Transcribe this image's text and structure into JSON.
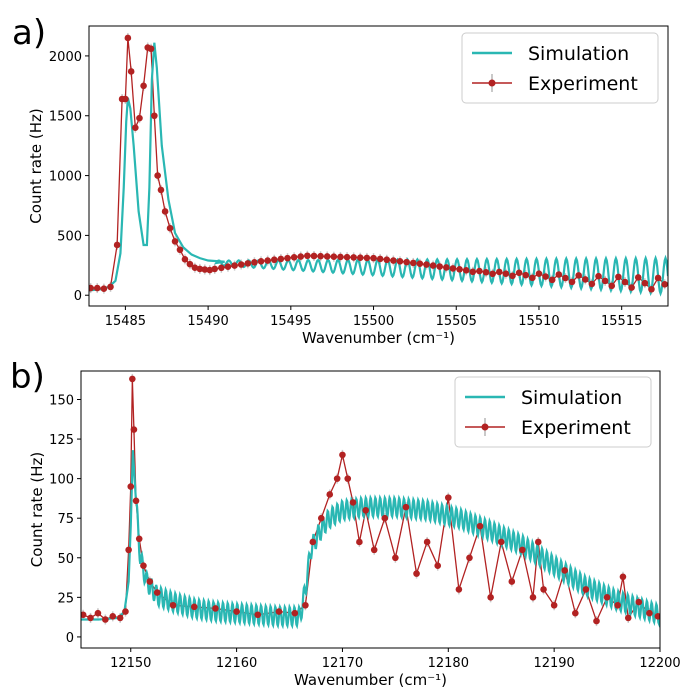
{
  "chart_data": [
    {
      "panel_label": "a)",
      "type": "line",
      "xlabel": "Wavenumber (cm⁻¹)",
      "ylabel": "Count rate (Hz)",
      "xlim": [
        15482.8,
        15517.8
      ],
      "ylim": [
        -90,
        2250
      ],
      "xticks": [
        15485,
        15490,
        15495,
        15500,
        15505,
        15510,
        15515
      ],
      "yticks": [
        0,
        500,
        1000,
        1500,
        2000
      ],
      "legend_position": "top-right",
      "series": [
        {
          "name": "Simulation",
          "color": "#2ab7b3",
          "x": [
            15482.8,
            15483.5,
            15484.0,
            15484.4,
            15484.7,
            15484.9,
            15485.05,
            15485.15,
            15485.3,
            15485.5,
            15485.8,
            15486.1,
            15486.3,
            15486.45,
            15486.6,
            15486.75,
            15486.9,
            15487.2,
            15487.6,
            15488.0,
            15488.5,
            15489.0,
            15489.5,
            15490.0,
            15490.5,
            15491.0
          ],
          "y": [
            40,
            50,
            70,
            120,
            350,
            900,
            1450,
            1650,
            1560,
            1250,
            700,
            420,
            420,
            900,
            1800,
            2110,
            1900,
            1250,
            800,
            520,
            400,
            340,
            310,
            290,
            285,
            280
          ],
          "oscillation": {
            "start": 15490.5,
            "end": 15517.8,
            "period": 0.6,
            "base": 270,
            "base_slope": -4,
            "amp_start": 20,
            "amp_end": 150
          }
        },
        {
          "name": "Experiment",
          "color": "#b22222",
          "x": [
            15482.9,
            15483.3,
            15483.7,
            15484.1,
            15484.5,
            15484.8,
            15485.0,
            15485.15,
            15485.35,
            15485.6,
            15485.85,
            15486.1,
            15486.35,
            15486.55,
            15486.75,
            15486.95,
            15487.15,
            15487.4,
            15487.7,
            15488.0,
            15488.3,
            15488.6,
            15488.9,
            15489.2,
            15489.5,
            15489.8,
            15490.1
          ],
          "y": [
            60,
            60,
            55,
            70,
            420,
            1640,
            1640,
            2150,
            1870,
            1400,
            1480,
            1750,
            2070,
            2060,
            1500,
            1000,
            880,
            700,
            560,
            450,
            380,
            300,
            260,
            230,
            220,
            215,
            210
          ],
          "continuation": {
            "start": 15490.4,
            "end": 15517.8,
            "step": 0.4,
            "levels": [
              [
                15490.4,
                220
              ],
              [
                15493,
                280
              ],
              [
                15496,
                330
              ],
              [
                15500,
                310
              ],
              [
                15503,
                260
              ],
              [
                15506,
                200
              ],
              [
                15510,
                160
              ],
              [
                15514,
                120
              ],
              [
                15517.8,
                90
              ]
            ],
            "osc_from": 15505,
            "osc_amp_end": 60,
            "period": 0.6
          }
        }
      ]
    },
    {
      "panel_label": "b)",
      "type": "line",
      "xlabel": "Wavenumber (cm⁻¹)",
      "ylabel": "Count rate (Hz)",
      "xlim": [
        12145.3,
        12200
      ],
      "ylim": [
        -7,
        168
      ],
      "xticks": [
        12150,
        12160,
        12170,
        12180,
        12190,
        12200
      ],
      "yticks": [
        0,
        25,
        50,
        75,
        100,
        125,
        150
      ],
      "legend_position": "top-right",
      "series": [
        {
          "name": "Simulation",
          "color": "#2ab7b3",
          "x": [
            12145.3,
            12147,
            12148.8,
            12149.4,
            12149.8,
            12150.0,
            12150.2,
            12150.5,
            12150.9,
            12151.5,
            12152.5,
            12154,
            12156,
            12158,
            12160,
            12162,
            12164,
            12166.0,
            12166.5,
            12167.0,
            12167.5,
            12168.0,
            12168.5,
            12169.0,
            12169.5,
            12170.0,
            12172,
            12175,
            12178,
            12181,
            12184,
            12187,
            12190,
            12193,
            12196,
            12200
          ],
          "y": [
            11,
            11,
            12,
            16,
            35,
            70,
            118,
            85,
            50,
            35,
            26,
            22,
            18,
            16,
            15,
            14,
            13,
            13,
            30,
            55,
            62,
            68,
            73,
            76,
            78,
            80,
            82,
            82,
            80,
            75,
            67,
            58,
            45,
            32,
            23,
            14
          ],
          "oscillation": {
            "start": 12150.5,
            "end": 12200,
            "period": 0.45,
            "amp": 6
          }
        },
        {
          "name": "Experiment",
          "color": "#b22222",
          "x": [
            12145.5,
            12146.2,
            12146.9,
            12147.6,
            12148.3,
            12149.0,
            12149.5,
            12149.8,
            12150.0,
            12150.15,
            12150.3,
            12150.5,
            12150.8,
            12151.2,
            12151.8,
            12152.5,
            12154,
            12156,
            12158,
            12160,
            12162,
            12164,
            12165.5,
            12166.5,
            12167.2,
            12168.0,
            12168.8,
            12169.5,
            12170.0,
            12170.5,
            12171.0,
            12171.6,
            12172.2,
            12173.0,
            12174.0,
            12175.0,
            12176.0,
            12177.0,
            12178.0,
            12179.0,
            12180.0,
            12181.0,
            12182.0,
            12183.0,
            12184.0,
            12185.0,
            12186.0,
            12187.0,
            12188.0,
            12188.5,
            12189.0,
            12190.0,
            12191.0,
            12192.0,
            12193.0,
            12194.0,
            12195.0,
            12196.0,
            12196.5,
            12197.0,
            12198.0,
            12199.0,
            12199.8
          ],
          "y": [
            14,
            12,
            15,
            11,
            13,
            12,
            16,
            55,
            95,
            163,
            131,
            86,
            62,
            45,
            35,
            28,
            20,
            19,
            18,
            16,
            14,
            16,
            15,
            20,
            60,
            75,
            90,
            100,
            115,
            100,
            85,
            60,
            80,
            55,
            75,
            50,
            82,
            40,
            60,
            45,
            88,
            30,
            50,
            70,
            25,
            60,
            35,
            55,
            25,
            60,
            30,
            20,
            42,
            15,
            30,
            10,
            25,
            20,
            38,
            12,
            22,
            15,
            13
          ]
        }
      ]
    }
  ]
}
